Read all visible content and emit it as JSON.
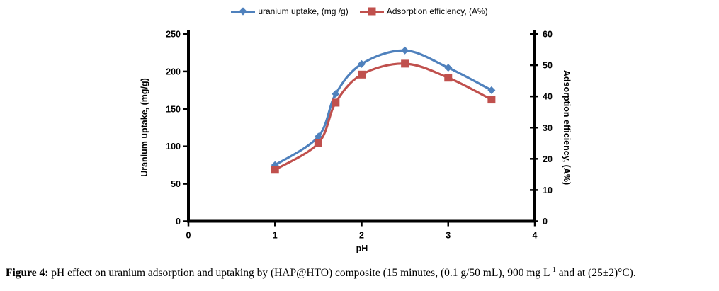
{
  "legend": {
    "series1_label": "uranium uptake, (mg /g)",
    "series2_label": "Adsorption efficiency, (A%)"
  },
  "axes": {
    "left_title": "Uranium uptake, (mg/g)",
    "right_title": "Adsorption efficiency, (A%)",
    "x_title": "pH"
  },
  "colors": {
    "series1": "#4F81BD",
    "series2": "#C0504D",
    "axis": "#000000"
  },
  "chart_data": {
    "type": "line",
    "x": [
      1,
      1.5,
      1.7,
      2,
      2.5,
      3,
      3.5
    ],
    "series": [
      {
        "name": "uranium uptake, (mg /g)",
        "axis": "left",
        "color": "#4F81BD",
        "marker": "diamond",
        "values": [
          75,
          113,
          170,
          210,
          228,
          205,
          175
        ]
      },
      {
        "name": "Adsorption efficiency, (A%)",
        "axis": "right",
        "color": "#C0504D",
        "marker": "square",
        "values": [
          16.5,
          25,
          38,
          47,
          50.5,
          46,
          39
        ]
      }
    ],
    "title": "",
    "xlabel": "pH",
    "ylabel_left": "Uranium uptake, (mg/g)",
    "ylabel_right": "Adsorption efficiency, (A%)",
    "xlim": [
      0,
      4
    ],
    "ylim_left": [
      0,
      250
    ],
    "ylim_right": [
      0,
      60
    ],
    "x_ticks": [
      0,
      1,
      2,
      3,
      4
    ],
    "left_ticks": [
      0,
      50,
      100,
      150,
      200,
      250
    ],
    "right_ticks": [
      0,
      10,
      20,
      30,
      40,
      50,
      60
    ],
    "grid": false,
    "smooth": true,
    "legend_position": "top-center"
  },
  "caption": {
    "label": "Figure 4:",
    "text_before_sup": " pH effect on uranium adsorption and uptaking by (HAP@HTO) composite (15 minutes, (0.1 g/50 mL), 900 mg L",
    "sup": "-1",
    "text_after_sup": " and at (25±2)°C)."
  }
}
